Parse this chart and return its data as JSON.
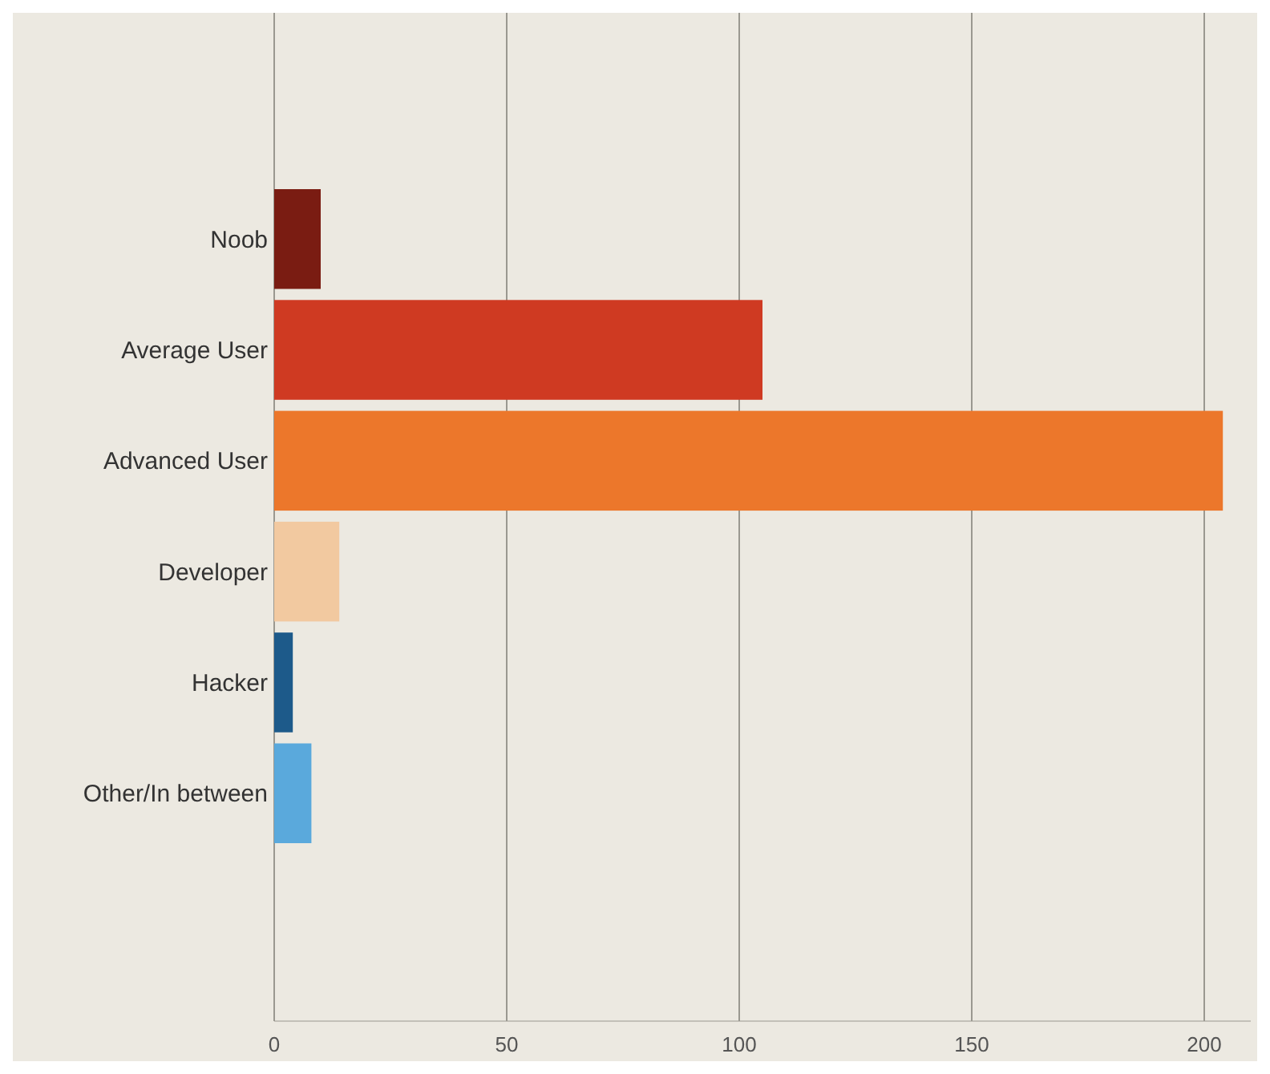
{
  "chart_data": {
    "type": "bar",
    "orientation": "horizontal",
    "categories": [
      "Noob",
      "Average User",
      "Advanced User",
      "Developer",
      "Hacker",
      "Other/In between"
    ],
    "values": [
      10,
      105,
      204,
      14,
      4,
      8
    ],
    "colors": [
      "#7a1c12",
      "#cf3a22",
      "#ec772b",
      "#f2c9a0",
      "#1d5a8a",
      "#5aa9dc"
    ],
    "xlim": [
      0,
      210
    ],
    "xticks": [
      0,
      50,
      100,
      150,
      200
    ],
    "grid": "x"
  }
}
